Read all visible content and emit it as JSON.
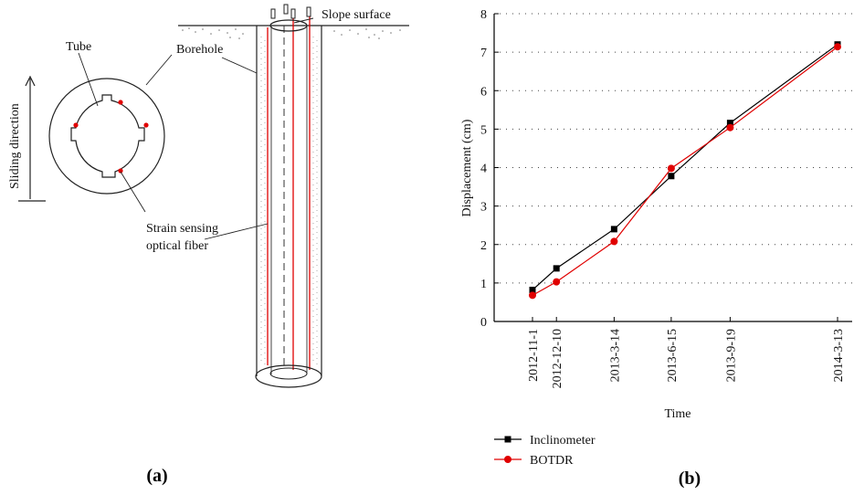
{
  "panel_a": {
    "caption": "(a)",
    "labels": {
      "tube": "Tube",
      "borehole": "Borehole",
      "slope_surface": "Slope surface",
      "sliding_direction": "Sliding direction",
      "fiber_line1": "Strain sensing",
      "fiber_line2": "optical fiber"
    },
    "colors": {
      "fiber": "#e00000",
      "outline": "#222222"
    }
  },
  "panel_b": {
    "caption": "(b)"
  },
  "chart_data": {
    "type": "line",
    "xlabel": "Time",
    "ylabel": "Displacement (cm)",
    "x": [
      "2012-11-1",
      "2012-12-10",
      "2013-3-14",
      "2013-6-15",
      "2013-9-19",
      "2014-3-13"
    ],
    "x_days": [
      0,
      39,
      133,
      226,
      322,
      497
    ],
    "ylim": [
      0,
      8
    ],
    "yticks": [
      0,
      1,
      2,
      3,
      4,
      5,
      6,
      7,
      8
    ],
    "grid": "horizontal dotted",
    "legend_placement": "bottom-left",
    "series": [
      {
        "name": "Inclinometer",
        "color": "#000000",
        "marker": "square",
        "values": [
          0.82,
          1.38,
          2.4,
          3.78,
          5.16,
          7.2
        ]
      },
      {
        "name": "BOTDR",
        "color": "#e00000",
        "marker": "circle",
        "values": [
          0.68,
          1.03,
          2.08,
          3.98,
          5.04,
          7.14
        ]
      }
    ]
  }
}
